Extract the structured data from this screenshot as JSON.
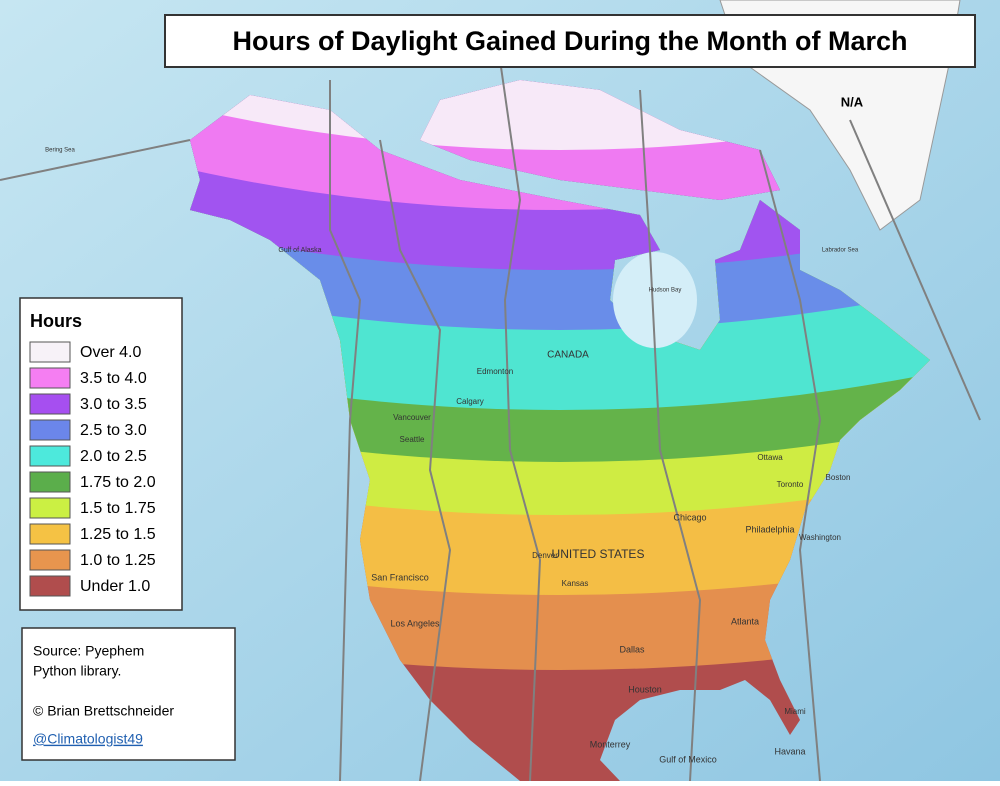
{
  "title": "Hours of Daylight Gained During the Month of March",
  "legend": {
    "title": "Hours",
    "items": [
      {
        "label": "Over 4.0",
        "color": "#f7f2f8"
      },
      {
        "label": "3.5 to 4.0",
        "color": "#f57ef2"
      },
      {
        "label": "3.0 to 3.5",
        "color": "#a64ff0"
      },
      {
        "label": "2.5 to 3.0",
        "color": "#6b86ea"
      },
      {
        "label": "2.0 to 2.5",
        "color": "#4de9dc"
      },
      {
        "label": "1.75 to 2.0",
        "color": "#5bae4b"
      },
      {
        "label": "1.5 to 1.75",
        "color": "#cbf043"
      },
      {
        "label": "1.25 to 1.5",
        "color": "#f5c244"
      },
      {
        "label": "1.0 to 1.25",
        "color": "#e8954e"
      },
      {
        "label": "Under 1.0",
        "color": "#b04d4d"
      }
    ]
  },
  "source": {
    "lines": [
      "Source: Pyephem",
      "Python library."
    ],
    "credit": "© Brian Brettschneider",
    "handle": "@Climatologist49"
  },
  "na_label": "N/A",
  "map_labels": [
    "CANADA",
    "UNITED STATES",
    "Edmonton",
    "Calgary",
    "Vancouver",
    "Seattle",
    "San Francisco",
    "Los Angeles",
    "Denver",
    "Kansas",
    "Chicago",
    "Toronto",
    "Ottawa",
    "Boston",
    "Philadelphia",
    "Washington",
    "Atlanta",
    "Dallas",
    "Houston",
    "Miami",
    "Monterrey",
    "Havana",
    "Gulf of Mexico",
    "Gulf of Alaska",
    "Hudson Bay",
    "Labrador Sea",
    "Bering Sea"
  ]
}
